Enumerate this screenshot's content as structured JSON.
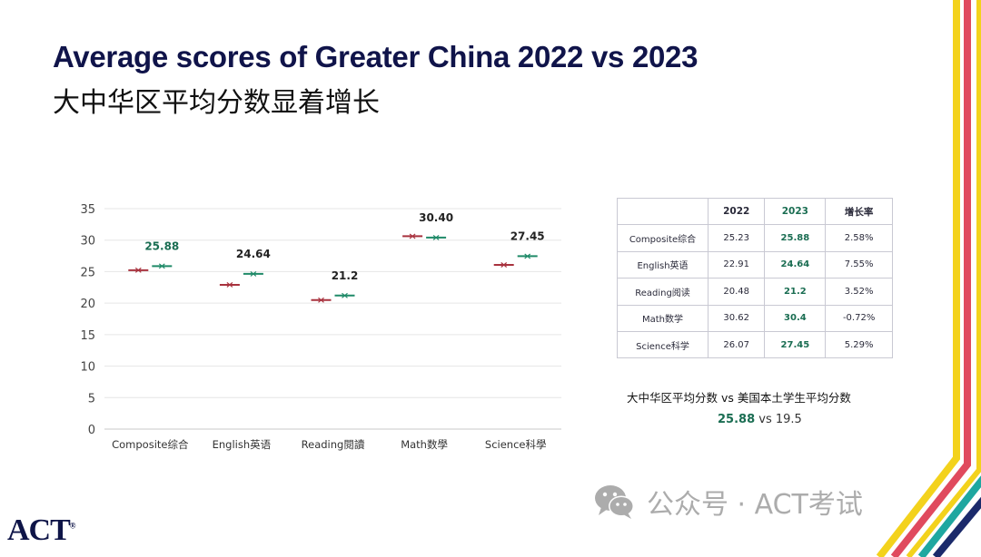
{
  "slide": {
    "title_en": "Average scores of Greater China 2022 vs 2023",
    "title_zh": "大中华区平均分数显着增长"
  },
  "chart_data": {
    "type": "scatter",
    "categories": [
      "Composite综合",
      "English英语",
      "Reading閱讀",
      "Math数學",
      "Science科學"
    ],
    "series": [
      {
        "values": [
          25.23,
          22.91,
          20.48,
          30.62,
          26.07
        ],
        "color": "#a8323e"
      },
      {
        "values": [
          25.88,
          24.64,
          21.2,
          30.4,
          27.45
        ],
        "color": "#1f8a68"
      }
    ],
    "data_labels": [
      "25.88",
      "24.64",
      "21.2",
      "30.40",
      "27.45"
    ],
    "yticks": [
      "0",
      "5",
      "10",
      "15",
      "20",
      "25",
      "30",
      "35"
    ],
    "ylim": [
      0,
      35
    ],
    "grid": true,
    "label_color_first": "#1a6d52",
    "label_color_rest": "#222222"
  },
  "table": {
    "headers": [
      "",
      "2022",
      "2023",
      "增长率"
    ],
    "rows": [
      [
        "Composite综合",
        "25.23",
        "25.88",
        "2.58%"
      ],
      [
        "English英语",
        "22.91",
        "24.64",
        "7.55%"
      ],
      [
        "Reading阅读",
        "20.48",
        "21.2",
        "3.52%"
      ],
      [
        "Math数学",
        "30.62",
        "30.4",
        "-0.72%"
      ],
      [
        "Science科学",
        "26.07",
        "27.45",
        "5.29%"
      ]
    ]
  },
  "comparison": {
    "title": "大中华区平均分数 vs 美国本土学生平均分数",
    "highlight": "25.88",
    "rest": " vs 19.5"
  },
  "logo": {
    "text": "ACT",
    "mark": "®"
  },
  "watermark": {
    "icon": "wechat-icon",
    "text": "公众号 · ACT考试"
  },
  "colors": {
    "navy": "#10144a",
    "green": "#1a6d52",
    "stripe_yellow": "#f3d21c",
    "stripe_red": "#e04a5e",
    "stripe_teal": "#1fa7a0",
    "stripe_navy": "#1b2a6b"
  }
}
